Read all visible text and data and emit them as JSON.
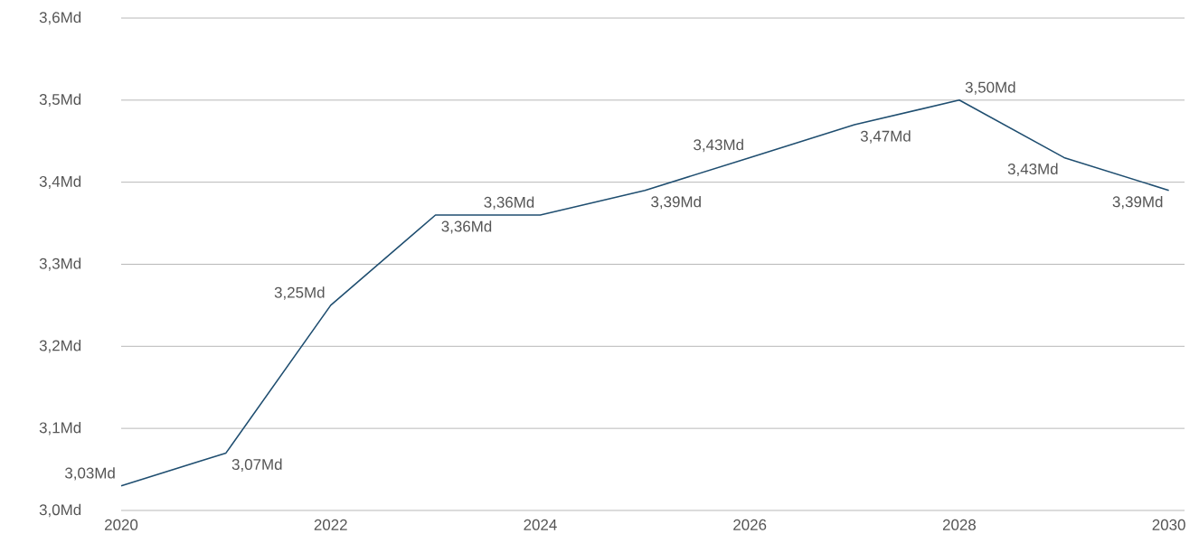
{
  "chart_data": {
    "type": "line",
    "x": [
      2020,
      2021,
      2022,
      2023,
      2024,
      2025,
      2026,
      2027,
      2028,
      2029,
      2030
    ],
    "values": [
      3.03,
      3.07,
      3.25,
      3.36,
      3.36,
      3.39,
      3.43,
      3.47,
      3.5,
      3.43,
      3.39
    ],
    "value_labels": [
      "3,03Md",
      "3,07Md",
      "3,25Md",
      "3,36Md",
      "3,36Md",
      "3,39Md",
      "3,43Md",
      "3,47Md",
      "3,50Md",
      "3,43Md",
      "3,39Md"
    ],
    "color": "#1f4e70",
    "xlim": [
      2020,
      2030.15
    ],
    "xticks": [
      2020,
      2022,
      2024,
      2026,
      2028,
      2030
    ],
    "ylim": [
      3.0,
      3.6
    ],
    "yticks": [
      {
        "value": 3.0,
        "label": "3,0Md"
      },
      {
        "value": 3.1,
        "label": "3,1Md"
      },
      {
        "value": 3.2,
        "label": "3,2Md"
      },
      {
        "value": 3.3,
        "label": "3,3Md"
      },
      {
        "value": 3.4,
        "label": "3,4Md"
      },
      {
        "value": 3.5,
        "label": "3,5Md"
      },
      {
        "value": 3.6,
        "label": "3,6Md"
      }
    ],
    "grid": "y",
    "marker": "none",
    "line_style": "solid"
  }
}
